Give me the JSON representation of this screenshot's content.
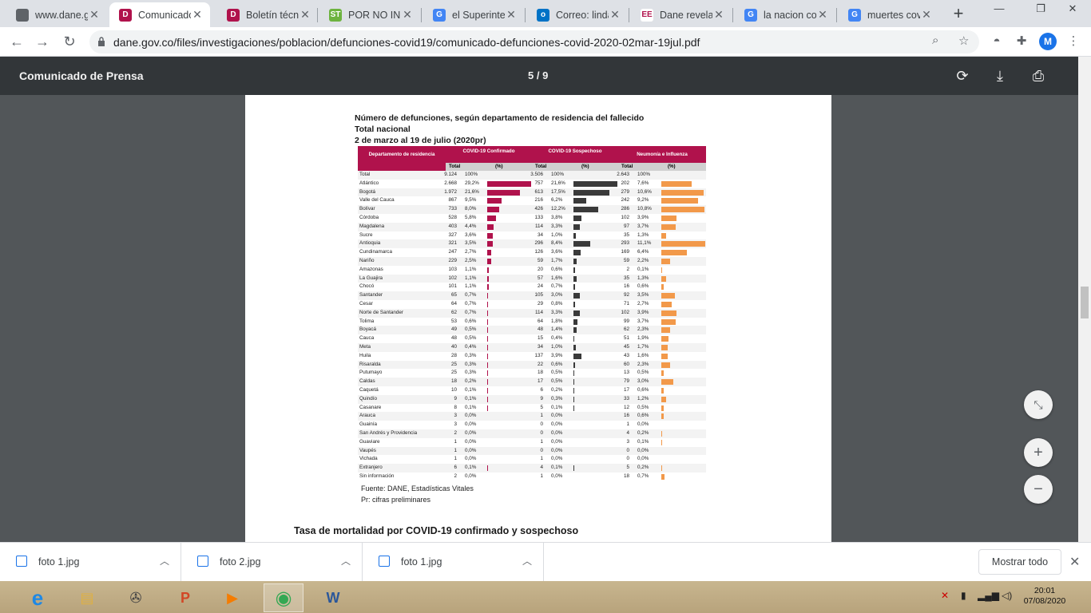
{
  "browser": {
    "tabs": [
      {
        "title": "www.dane.gov.co",
        "icon": "globe-icon",
        "favbg": "#5f6368",
        "favtxt": ""
      },
      {
        "title": "Comunicado de Prensa",
        "icon": "dane-d-icon",
        "favbg": "#b0124c",
        "favtxt": "D"
      },
      {
        "title": "Boletín técnico",
        "icon": "dane-d-icon",
        "favbg": "#b0124c",
        "favtxt": "D"
      },
      {
        "title": "POR NO INFORMAR",
        "icon": "st-icon",
        "favbg": "#6db33f",
        "favtxt": "ST"
      },
      {
        "title": "el Superintendente",
        "icon": "google-icon",
        "favbg": "#4285f4",
        "favtxt": "G"
      },
      {
        "title": "Correo: linda",
        "icon": "outlook-icon",
        "favbg": "#0072c6",
        "favtxt": "o"
      },
      {
        "title": "Dane revela",
        "icon": "ee-icon",
        "favbg": "#ffffff",
        "favtxt": "EE"
      },
      {
        "title": "la nacion co",
        "icon": "google-icon",
        "favbg": "#4285f4",
        "favtxt": "G"
      },
      {
        "title": "muertes covid",
        "icon": "google-icon",
        "favbg": "#4285f4",
        "favtxt": "G"
      }
    ],
    "url": "dane.gov.co/files/investigaciones/poblacion/defunciones-covid19/comunicado-defunciones-covid-2020-02mar-19jul.pdf",
    "avatar": "M"
  },
  "pdf": {
    "title": "Comunicado de Prensa",
    "page": "5 / 9"
  },
  "doc": {
    "title1": "Número de defunciones, según departamento de residencia del fallecido",
    "title2": "Total nacional",
    "title3": "2 de marzo al 19 de julio (2020pr)",
    "headers": {
      "dep": "Departamento de residencia",
      "conf": "COVID-19 Confirmado",
      "sosp": "COVID-19 Sospechoso",
      "neu": "Neumonía e Influenza",
      "total": "Total",
      "pct": "(%)"
    },
    "colors": {
      "conf": "#b0124c",
      "sosp": "#3a3a3a",
      "neu": "#f2994a"
    },
    "rows": [
      [
        "Total",
        "9.124",
        "100%",
        "3.506",
        "100%",
        "2.643",
        "100%"
      ],
      [
        "Atlántico",
        "2.668",
        "29,2%",
        "757",
        "21,6%",
        "202",
        "7,6%"
      ],
      [
        "Bogotá",
        "1.972",
        "21,6%",
        "613",
        "17,5%",
        "279",
        "10,6%"
      ],
      [
        "Valle del Cauca",
        "867",
        "9,5%",
        "216",
        "6,2%",
        "242",
        "9,2%"
      ],
      [
        "Bolívar",
        "733",
        "8,0%",
        "426",
        "12,2%",
        "286",
        "10,8%"
      ],
      [
        "Córdoba",
        "528",
        "5,8%",
        "133",
        "3,8%",
        "102",
        "3,9%"
      ],
      [
        "Magdalena",
        "403",
        "4,4%",
        "114",
        "3,3%",
        "97",
        "3,7%"
      ],
      [
        "Sucre",
        "327",
        "3,6%",
        "34",
        "1,0%",
        "35",
        "1,3%"
      ],
      [
        "Antioquia",
        "321",
        "3,5%",
        "296",
        "8,4%",
        "293",
        "11,1%"
      ],
      [
        "Cundinamarca",
        "247",
        "2,7%",
        "126",
        "3,6%",
        "169",
        "6,4%"
      ],
      [
        "Nariño",
        "229",
        "2,5%",
        "59",
        "1,7%",
        "59",
        "2,2%"
      ],
      [
        "Amazonas",
        "103",
        "1,1%",
        "20",
        "0,6%",
        "2",
        "0,1%"
      ],
      [
        "La Guajira",
        "102",
        "1,1%",
        "57",
        "1,6%",
        "35",
        "1,3%"
      ],
      [
        "Chocó",
        "101",
        "1,1%",
        "24",
        "0,7%",
        "16",
        "0,6%"
      ],
      [
        "Santander",
        "65",
        "0,7%",
        "105",
        "3,0%",
        "92",
        "3,5%"
      ],
      [
        "Cesar",
        "64",
        "0,7%",
        "29",
        "0,8%",
        "71",
        "2,7%"
      ],
      [
        "Norte de Santander",
        "62",
        "0,7%",
        "114",
        "3,3%",
        "102",
        "3,9%"
      ],
      [
        "Tolima",
        "53",
        "0,6%",
        "64",
        "1,8%",
        "99",
        "3,7%"
      ],
      [
        "Boyacá",
        "49",
        "0,5%",
        "48",
        "1,4%",
        "62",
        "2,3%"
      ],
      [
        "Cauca",
        "48",
        "0,5%",
        "15",
        "0,4%",
        "51",
        "1,9%"
      ],
      [
        "Meta",
        "40",
        "0,4%",
        "34",
        "1,0%",
        "45",
        "1,7%"
      ],
      [
        "Huila",
        "28",
        "0,3%",
        "137",
        "3,9%",
        "43",
        "1,6%"
      ],
      [
        "Risaralda",
        "25",
        "0,3%",
        "22",
        "0,6%",
        "60",
        "2,3%"
      ],
      [
        "Putumayo",
        "25",
        "0,3%",
        "18",
        "0,5%",
        "13",
        "0,5%"
      ],
      [
        "Caldas",
        "18",
        "0,2%",
        "17",
        "0,5%",
        "79",
        "3,0%"
      ],
      [
        "Caquetá",
        "10",
        "0,1%",
        "6",
        "0,2%",
        "17",
        "0,6%"
      ],
      [
        "Quindío",
        "9",
        "0,1%",
        "9",
        "0,3%",
        "33",
        "1,2%"
      ],
      [
        "Casanare",
        "8",
        "0,1%",
        "5",
        "0,1%",
        "12",
        "0,5%"
      ],
      [
        "Arauca",
        "3",
        "0,0%",
        "1",
        "0,0%",
        "16",
        "0,6%"
      ],
      [
        "Guainía",
        "3",
        "0,0%",
        "0",
        "0,0%",
        "1",
        "0,0%"
      ],
      [
        "San Andrés y Providencia",
        "2",
        "0,0%",
        "0",
        "0,0%",
        "4",
        "0,2%"
      ],
      [
        "Guaviare",
        "1",
        "0,0%",
        "1",
        "0,0%",
        "3",
        "0,1%"
      ],
      [
        "Vaupés",
        "1",
        "0,0%",
        "0",
        "0,0%",
        "0",
        "0,0%"
      ],
      [
        "Vichada",
        "1",
        "0,0%",
        "1",
        "0,0%",
        "0",
        "0,0%"
      ],
      [
        "Extranjero",
        "6",
        "0,1%",
        "4",
        "0,1%",
        "5",
        "0,2%"
      ],
      [
        "Sin información",
        "2",
        "0,0%",
        "1",
        "0,0%",
        "18",
        "0,7%"
      ]
    ],
    "source": "Fuente: DANE, Estadísticas Vitales",
    "note": "Pr: cifras preliminares",
    "next_heading": "Tasa de mortalidad por COVID-19 confirmado y sospechoso"
  },
  "downloads": {
    "items": [
      "foto 1.jpg",
      "foto 2.jpg",
      "foto 1.jpg"
    ],
    "show_all": "Mostrar todo"
  },
  "taskbar": {
    "time": "20:01",
    "date": "07/08/2020"
  }
}
